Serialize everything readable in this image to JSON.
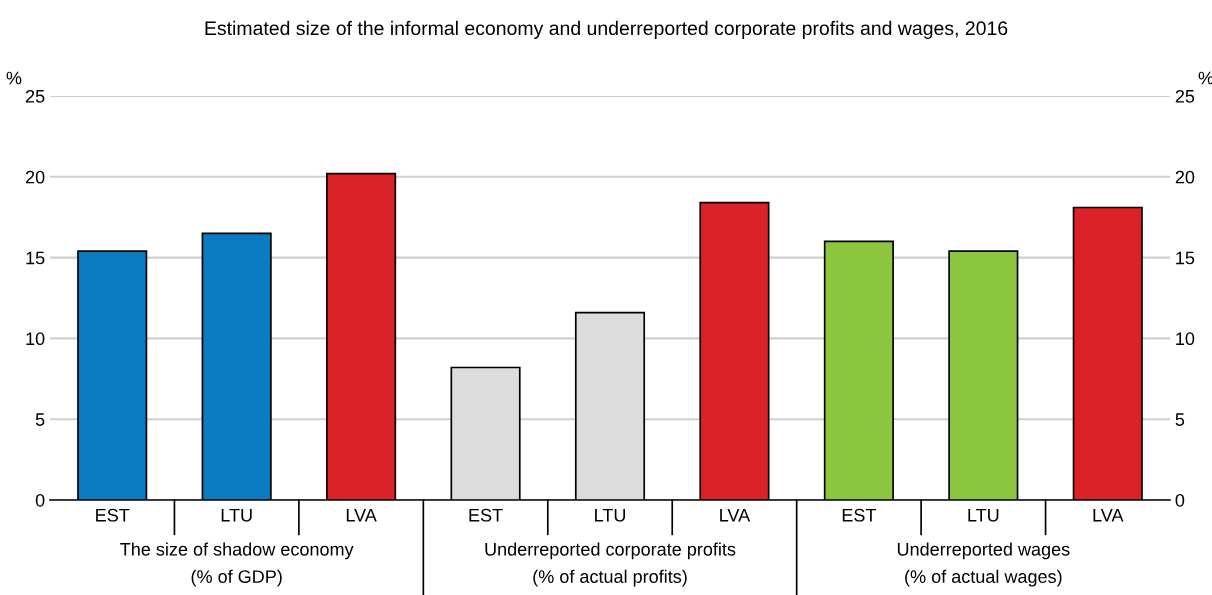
{
  "chart_data": {
    "type": "bar",
    "title": "Estimated size of the informal economy and underreported corporate profits and wages, 2016",
    "categories": [
      "EST",
      "LTU",
      "LVA",
      "EST",
      "LTU",
      "LVA",
      "EST",
      "LTU",
      "LVA"
    ],
    "values": [
      15.4,
      16.5,
      20.2,
      8.2,
      11.6,
      18.4,
      16.0,
      15.4,
      18.1
    ],
    "colors": [
      "#0b7cc1",
      "#0b7cc1",
      "#dc2229",
      "#dcdcdc",
      "#dcdcdc",
      "#dc2229",
      "#8cc63f",
      "#8cc63f",
      "#dc2229"
    ],
    "ylabel": "%",
    "y2label": "%",
    "ylim": [
      0,
      25
    ],
    "yticks": [
      0,
      5,
      10,
      15,
      20,
      25
    ],
    "y2lim": [
      0,
      25
    ],
    "y2ticks": [
      0,
      5,
      10,
      15,
      20,
      25
    ],
    "grid": "y",
    "annotations": [
      "The size of shadow economy\n(% of GDP)",
      "Underreported corporate profits\n(% of actual profits)",
      "Underreported wages\n(% of actual wages)"
    ]
  }
}
